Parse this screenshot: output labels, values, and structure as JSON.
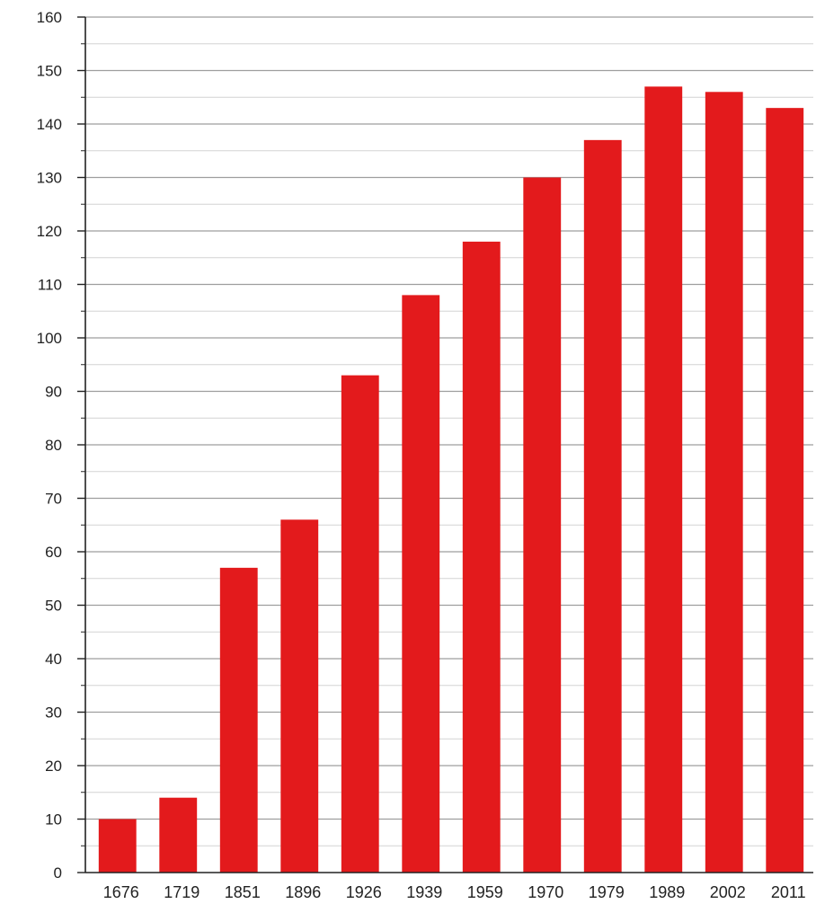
{
  "chart_data": {
    "type": "bar",
    "title": "",
    "xlabel": "",
    "ylabel": "",
    "categories": [
      "1676",
      "1719",
      "1851",
      "1896",
      "1926",
      "1939",
      "1959",
      "1970",
      "1979",
      "1989",
      "2002",
      "2011"
    ],
    "values": [
      10,
      14,
      57,
      66,
      93,
      108,
      118,
      130,
      137,
      147,
      146,
      143
    ],
    "ylim": [
      0,
      160
    ],
    "yticks": [
      0,
      10,
      20,
      30,
      40,
      50,
      60,
      70,
      80,
      90,
      100,
      110,
      120,
      130,
      140,
      150,
      160
    ],
    "minor_step": 5,
    "grid": true,
    "legend": "none",
    "colors": {
      "bar": "#e31a1c",
      "major_grid": "#9e9e9e",
      "minor_grid": "#d4d4d4",
      "axis": "#222222"
    }
  }
}
